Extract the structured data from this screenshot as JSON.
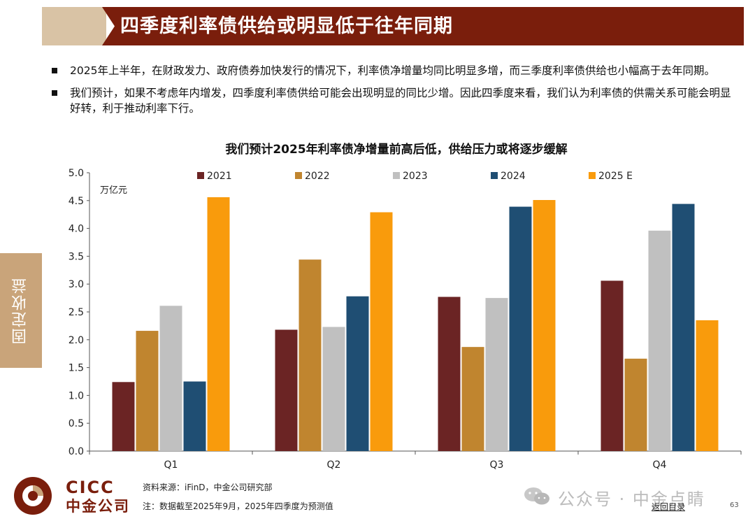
{
  "header": {
    "title": "四季度利率债供给或明显低于往年同期"
  },
  "bullets": [
    "2025年上半年，在财政发力、政府债券加快发行的情况下，利率债净增量均同比明显多增，而三季度利率债供给也小幅高于去年同期。",
    "我们预计，如果不考虑年内增发，四季度利率债供给可能会出现明显的同比少增。因此四季度来看，我们认为利率债的供需关系可能会明显好转，利于推动利率下行。"
  ],
  "side_tab": {
    "label": "固定收益"
  },
  "chart_data": {
    "type": "bar",
    "title": "我们预计2025年利率债净增量前高后低，供给压力或将逐步缓解",
    "unit_label": "万亿元",
    "categories": [
      "Q1",
      "Q2",
      "Q3",
      "Q4"
    ],
    "series": [
      {
        "name": "2021",
        "color": "#6b2424",
        "values": [
          1.24,
          2.18,
          2.77,
          3.06
        ]
      },
      {
        "name": "2022",
        "color": "#c0852f",
        "values": [
          2.16,
          3.44,
          1.87,
          1.66
        ]
      },
      {
        "name": "2023",
        "color": "#c0c0c0",
        "values": [
          2.61,
          2.23,
          2.75,
          3.96
        ]
      },
      {
        "name": "2024",
        "color": "#1f4e73",
        "values": [
          1.25,
          2.78,
          4.39,
          4.44
        ]
      },
      {
        "name": "2025 E",
        "color": "#f99b0c",
        "values": [
          4.56,
          4.29,
          4.51,
          2.35
        ]
      }
    ],
    "ylim": [
      0,
      5
    ],
    "yticks": [
      "0.0",
      "0.5",
      "1.0",
      "1.5",
      "2.0",
      "2.5",
      "3.0",
      "3.5",
      "4.0",
      "4.5",
      "5.0"
    ],
    "legend": "top",
    "grid": false
  },
  "footer": {
    "brand_en": "CICC",
    "brand_cn": "中金公司",
    "source": "资料来源：iFinD，中金公司研究部",
    "note": "注：数据截至2025年9月，2025年四季度为预测值",
    "watermark": "公众号 · 中金点睛",
    "toc_link": "返回目录",
    "page_number": "63"
  }
}
